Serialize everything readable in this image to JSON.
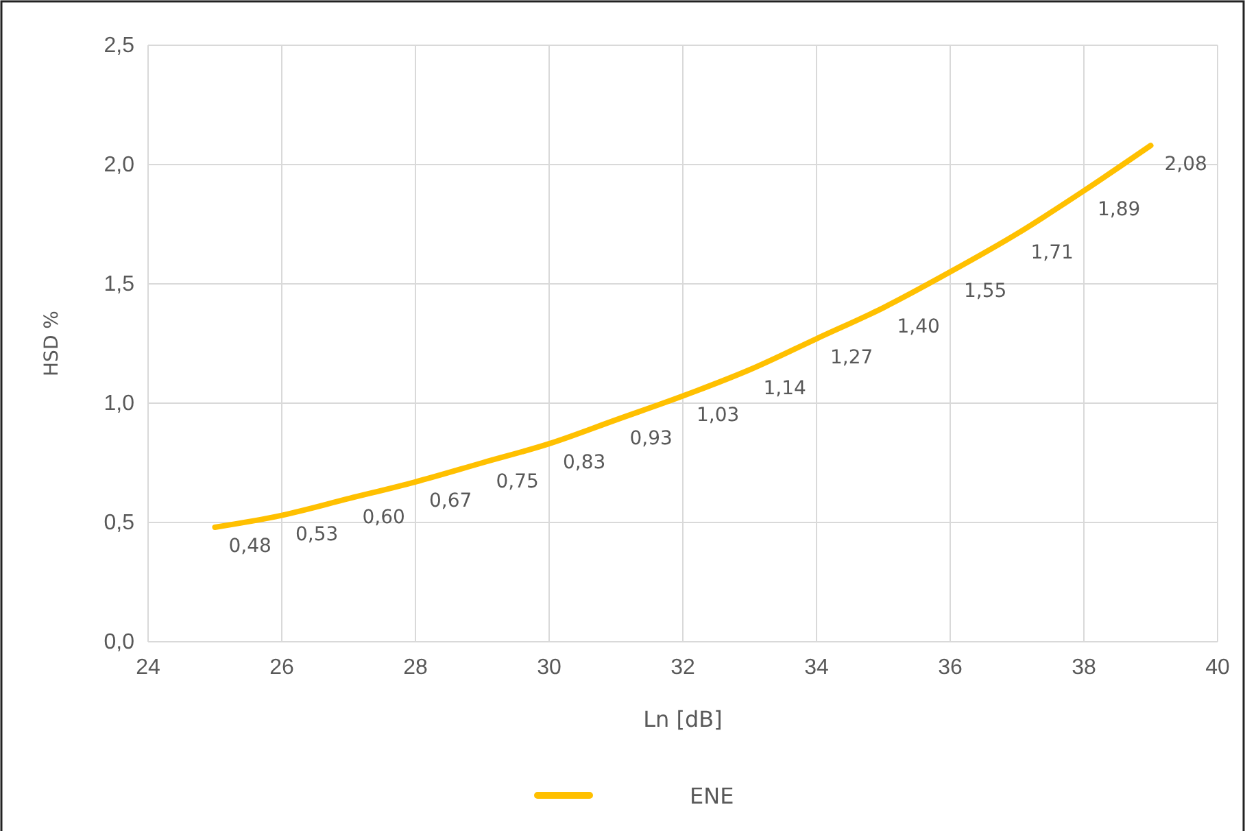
{
  "chart_data": {
    "type": "line",
    "xlabel": "Ln [dB]",
    "ylabel": "HSD %",
    "x": [
      25,
      26,
      27,
      28,
      29,
      30,
      31,
      32,
      33,
      34,
      35,
      36,
      37,
      38,
      39
    ],
    "series": [
      {
        "name": "ENE",
        "color": "#ffc000",
        "values": [
          0.48,
          0.53,
          0.6,
          0.67,
          0.75,
          0.83,
          0.93,
          1.03,
          1.14,
          1.27,
          1.4,
          1.55,
          1.71,
          1.89,
          2.08
        ],
        "value_labels": [
          "0,48",
          "0,53",
          "0,60",
          "0,67",
          "0,75",
          "0,83",
          "0,93",
          "1,03",
          "1,14",
          "1,27",
          "1,40",
          "1,55",
          "1,71",
          "1,89",
          "2,08"
        ]
      }
    ],
    "xlim": [
      24,
      40
    ],
    "xticks": [
      24,
      26,
      28,
      30,
      32,
      34,
      36,
      38,
      40
    ],
    "ylim": [
      0,
      2.5
    ],
    "yticks": [
      {
        "value": 0,
        "label": "0,0"
      },
      {
        "value": 0.5,
        "label": "0,5"
      },
      {
        "value": 1,
        "label": "1,0"
      },
      {
        "value": 1.5,
        "label": "1,5"
      },
      {
        "value": 2,
        "label": "2,0"
      },
      {
        "value": 2.5,
        "label": "2,5"
      }
    ],
    "grid": true,
    "legend": "bottom",
    "marker": "none",
    "line_style": "solid"
  }
}
